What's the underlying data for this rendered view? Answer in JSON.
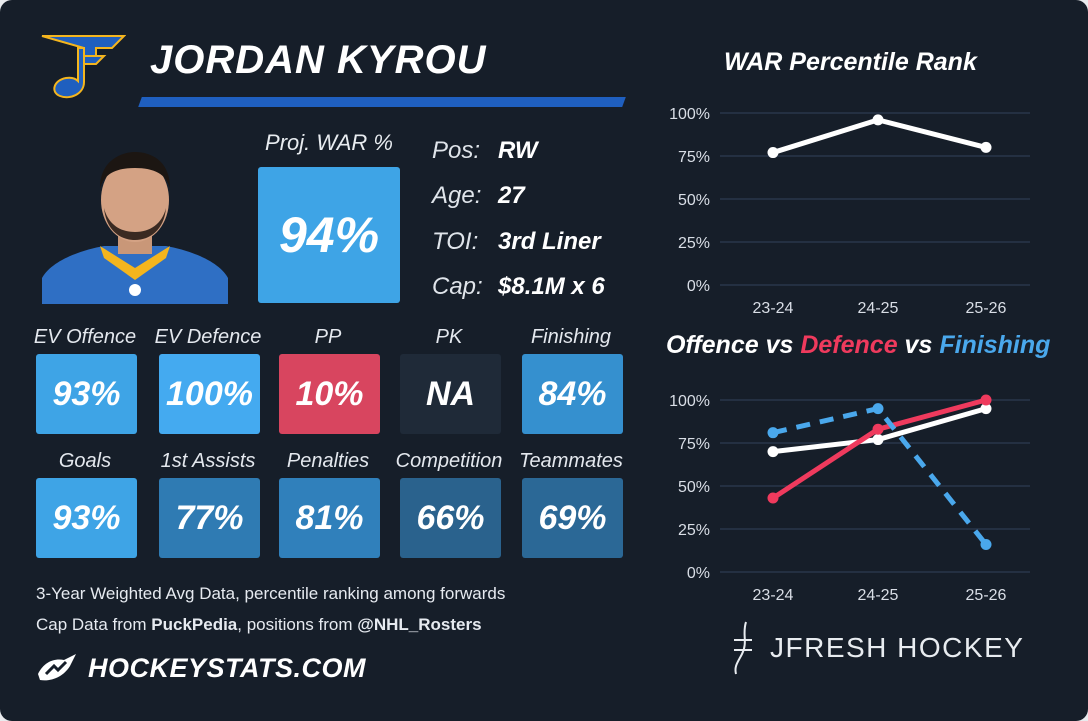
{
  "player": {
    "name": "JORDAN KYROU",
    "war_label": "Proj. WAR %",
    "war_value": "94%",
    "info": [
      {
        "key": "Pos:",
        "value": "RW"
      },
      {
        "key": "Age:",
        "value": "27"
      },
      {
        "key": "TOI:",
        "value": "3rd Liner"
      },
      {
        "key": "Cap:",
        "value": "$8.1M x 6"
      }
    ]
  },
  "stats": [
    {
      "label": "EV Offence",
      "value": "93%",
      "color": "#3ea4e6"
    },
    {
      "label": "EV Defence",
      "value": "100%",
      "color": "#44aaf0"
    },
    {
      "label": "PP",
      "value": "10%",
      "color": "#d8455f"
    },
    {
      "label": "PK",
      "value": "NA",
      "color": "#1f2a38"
    },
    {
      "label": "Finishing",
      "value": "84%",
      "color": "#3590cf"
    },
    {
      "label": "Goals",
      "value": "93%",
      "color": "#3ea4e6"
    },
    {
      "label": "1st Assists",
      "value": "77%",
      "color": "#2f7bb3"
    },
    {
      "label": "Penalties",
      "value": "81%",
      "color": "#3080bb"
    },
    {
      "label": "Competition",
      "value": "66%",
      "color": "#2a628d"
    },
    {
      "label": "Teammates",
      "value": "69%",
      "color": "#2b6896"
    }
  ],
  "footer": {
    "line1": "3-Year Weighted Avg Data, percentile ranking among forwards",
    "line2_prefix": "Cap Data from ",
    "line2_bold1": "PuckPedia",
    "line2_mid": ", positions from ",
    "line2_bold2": "@NHL_Rosters",
    "brand": "HOCKEYSTATS.COM",
    "credit": "JFRESH HOCKEY"
  },
  "colors": {
    "offence": "#ffffff",
    "defence": "#ef3a5d",
    "finishing": "#4aa8ec",
    "accent_bar": "#1f5fbf"
  },
  "chart_data": [
    {
      "type": "line",
      "title": "WAR Percentile Rank",
      "categories": [
        "23-24",
        "24-25",
        "25-26"
      ],
      "y_ticks": [
        "0%",
        "25%",
        "50%",
        "75%",
        "100%"
      ],
      "ylim": [
        0,
        100
      ],
      "series": [
        {
          "values": [
            77,
            96,
            80
          ],
          "color": "#ffffff",
          "style": "solid"
        }
      ]
    },
    {
      "type": "line",
      "title": "Offence vs Defence vs Finishing",
      "title_parts": [
        {
          "text": "Offence",
          "color": "#ffffff"
        },
        {
          "text": " vs ",
          "color": "#ffffff"
        },
        {
          "text": "Defence",
          "color": "#ef3a5d"
        },
        {
          "text": " vs ",
          "color": "#ffffff"
        },
        {
          "text": "Finishing",
          "color": "#4aa8ec"
        }
      ],
      "categories": [
        "23-24",
        "24-25",
        "25-26"
      ],
      "y_ticks": [
        "0%",
        "25%",
        "50%",
        "75%",
        "100%"
      ],
      "ylim": [
        0,
        100
      ],
      "series": [
        {
          "name": "Offence",
          "values": [
            70,
            77,
            95
          ],
          "color": "#ffffff",
          "style": "solid"
        },
        {
          "name": "Defence",
          "values": [
            43,
            83,
            100
          ],
          "color": "#ef3a5d",
          "style": "solid"
        },
        {
          "name": "Finishing",
          "values": [
            81,
            95,
            16
          ],
          "color": "#4aa8ec",
          "style": "dashed"
        }
      ]
    }
  ]
}
